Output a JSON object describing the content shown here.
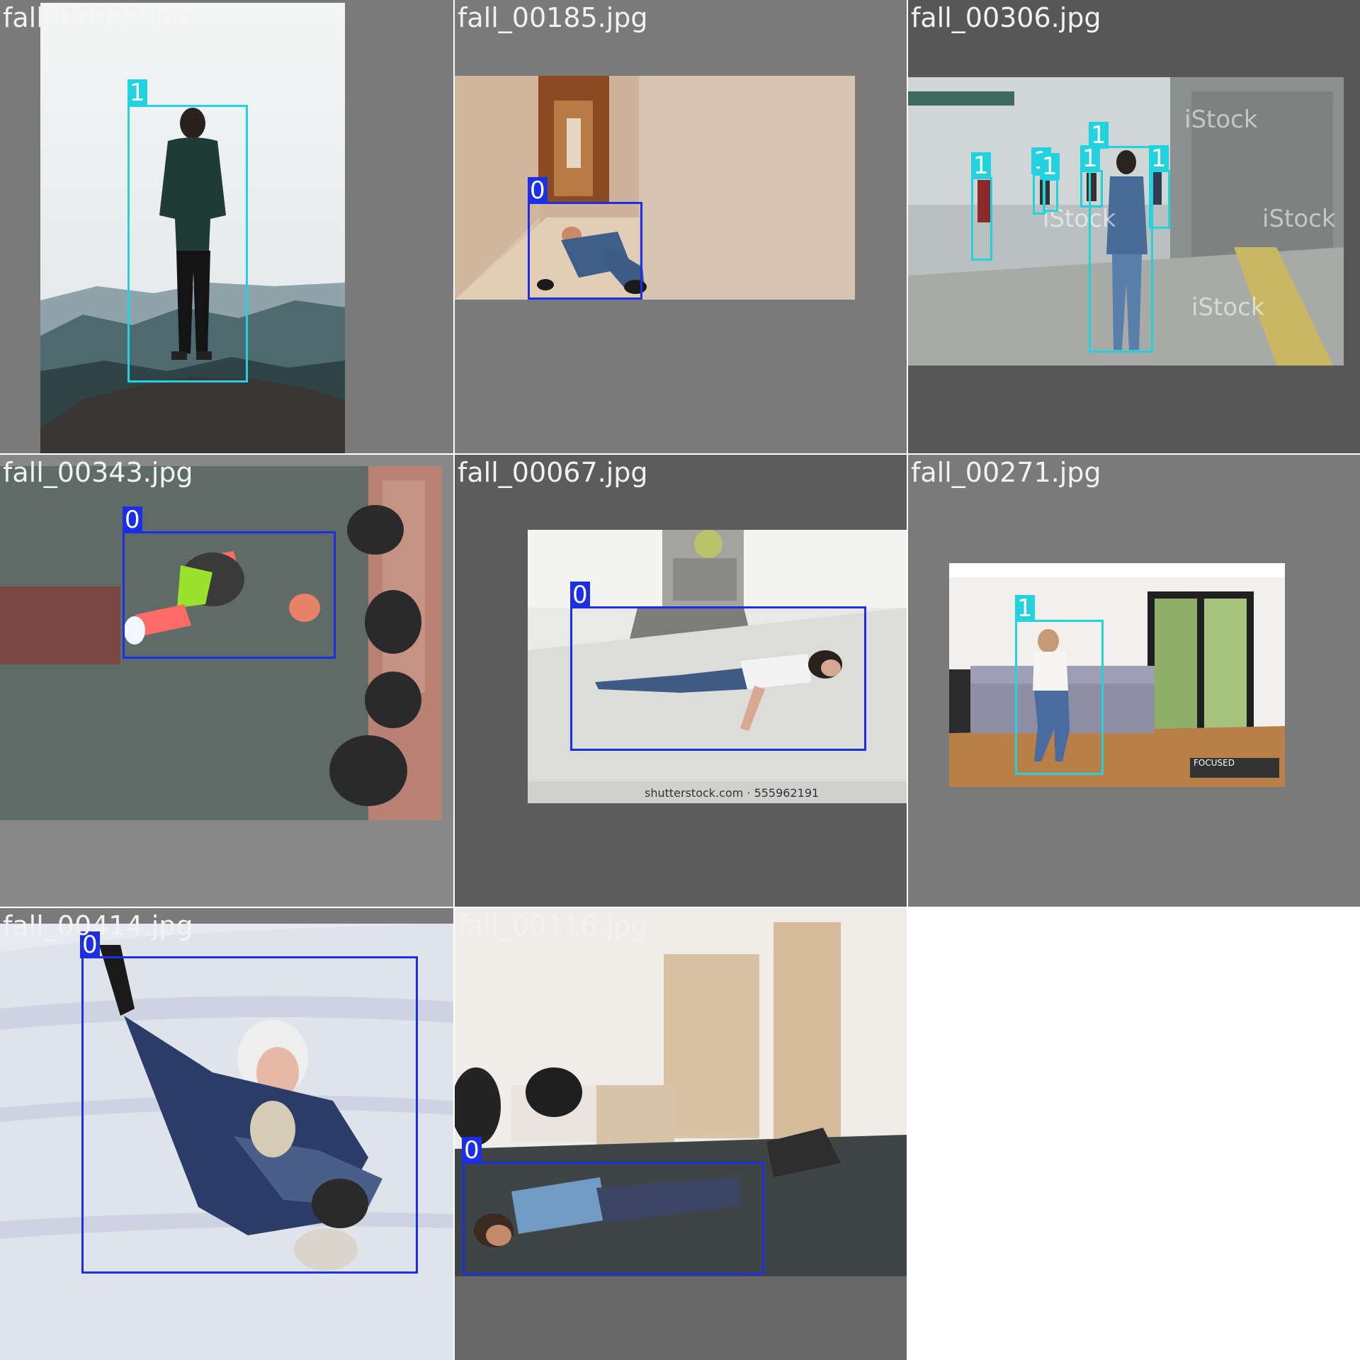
{
  "mosaic": {
    "tiles": [
      {
        "filename": "fall_00022.jpg",
        "labels": [
          "1"
        ]
      },
      {
        "filename": "fall_00185.jpg",
        "labels": [
          "0"
        ]
      },
      {
        "filename": "fall_00306.jpg",
        "labels": [
          "1",
          "1",
          "1",
          "1",
          "1",
          "1"
        ],
        "watermark": "iStock"
      },
      {
        "filename": "fall_00343.jpg",
        "labels": [
          "0"
        ]
      },
      {
        "filename": "fall_00067.jpg",
        "labels": [
          "0"
        ],
        "footer_text": "shutterstock.com · 555962191"
      },
      {
        "filename": "fall_00271.jpg",
        "labels": [
          "1"
        ],
        "watermark": "FOCUSED"
      },
      {
        "filename": "fall_00414.jpg",
        "labels": [
          "0"
        ]
      },
      {
        "filename": "fall_00116.jpg",
        "labels": [
          "0"
        ]
      }
    ]
  },
  "colors": {
    "class_0": "#1c2ee6",
    "class_1": "#22d3df",
    "letterbox_gray": "#727272"
  }
}
